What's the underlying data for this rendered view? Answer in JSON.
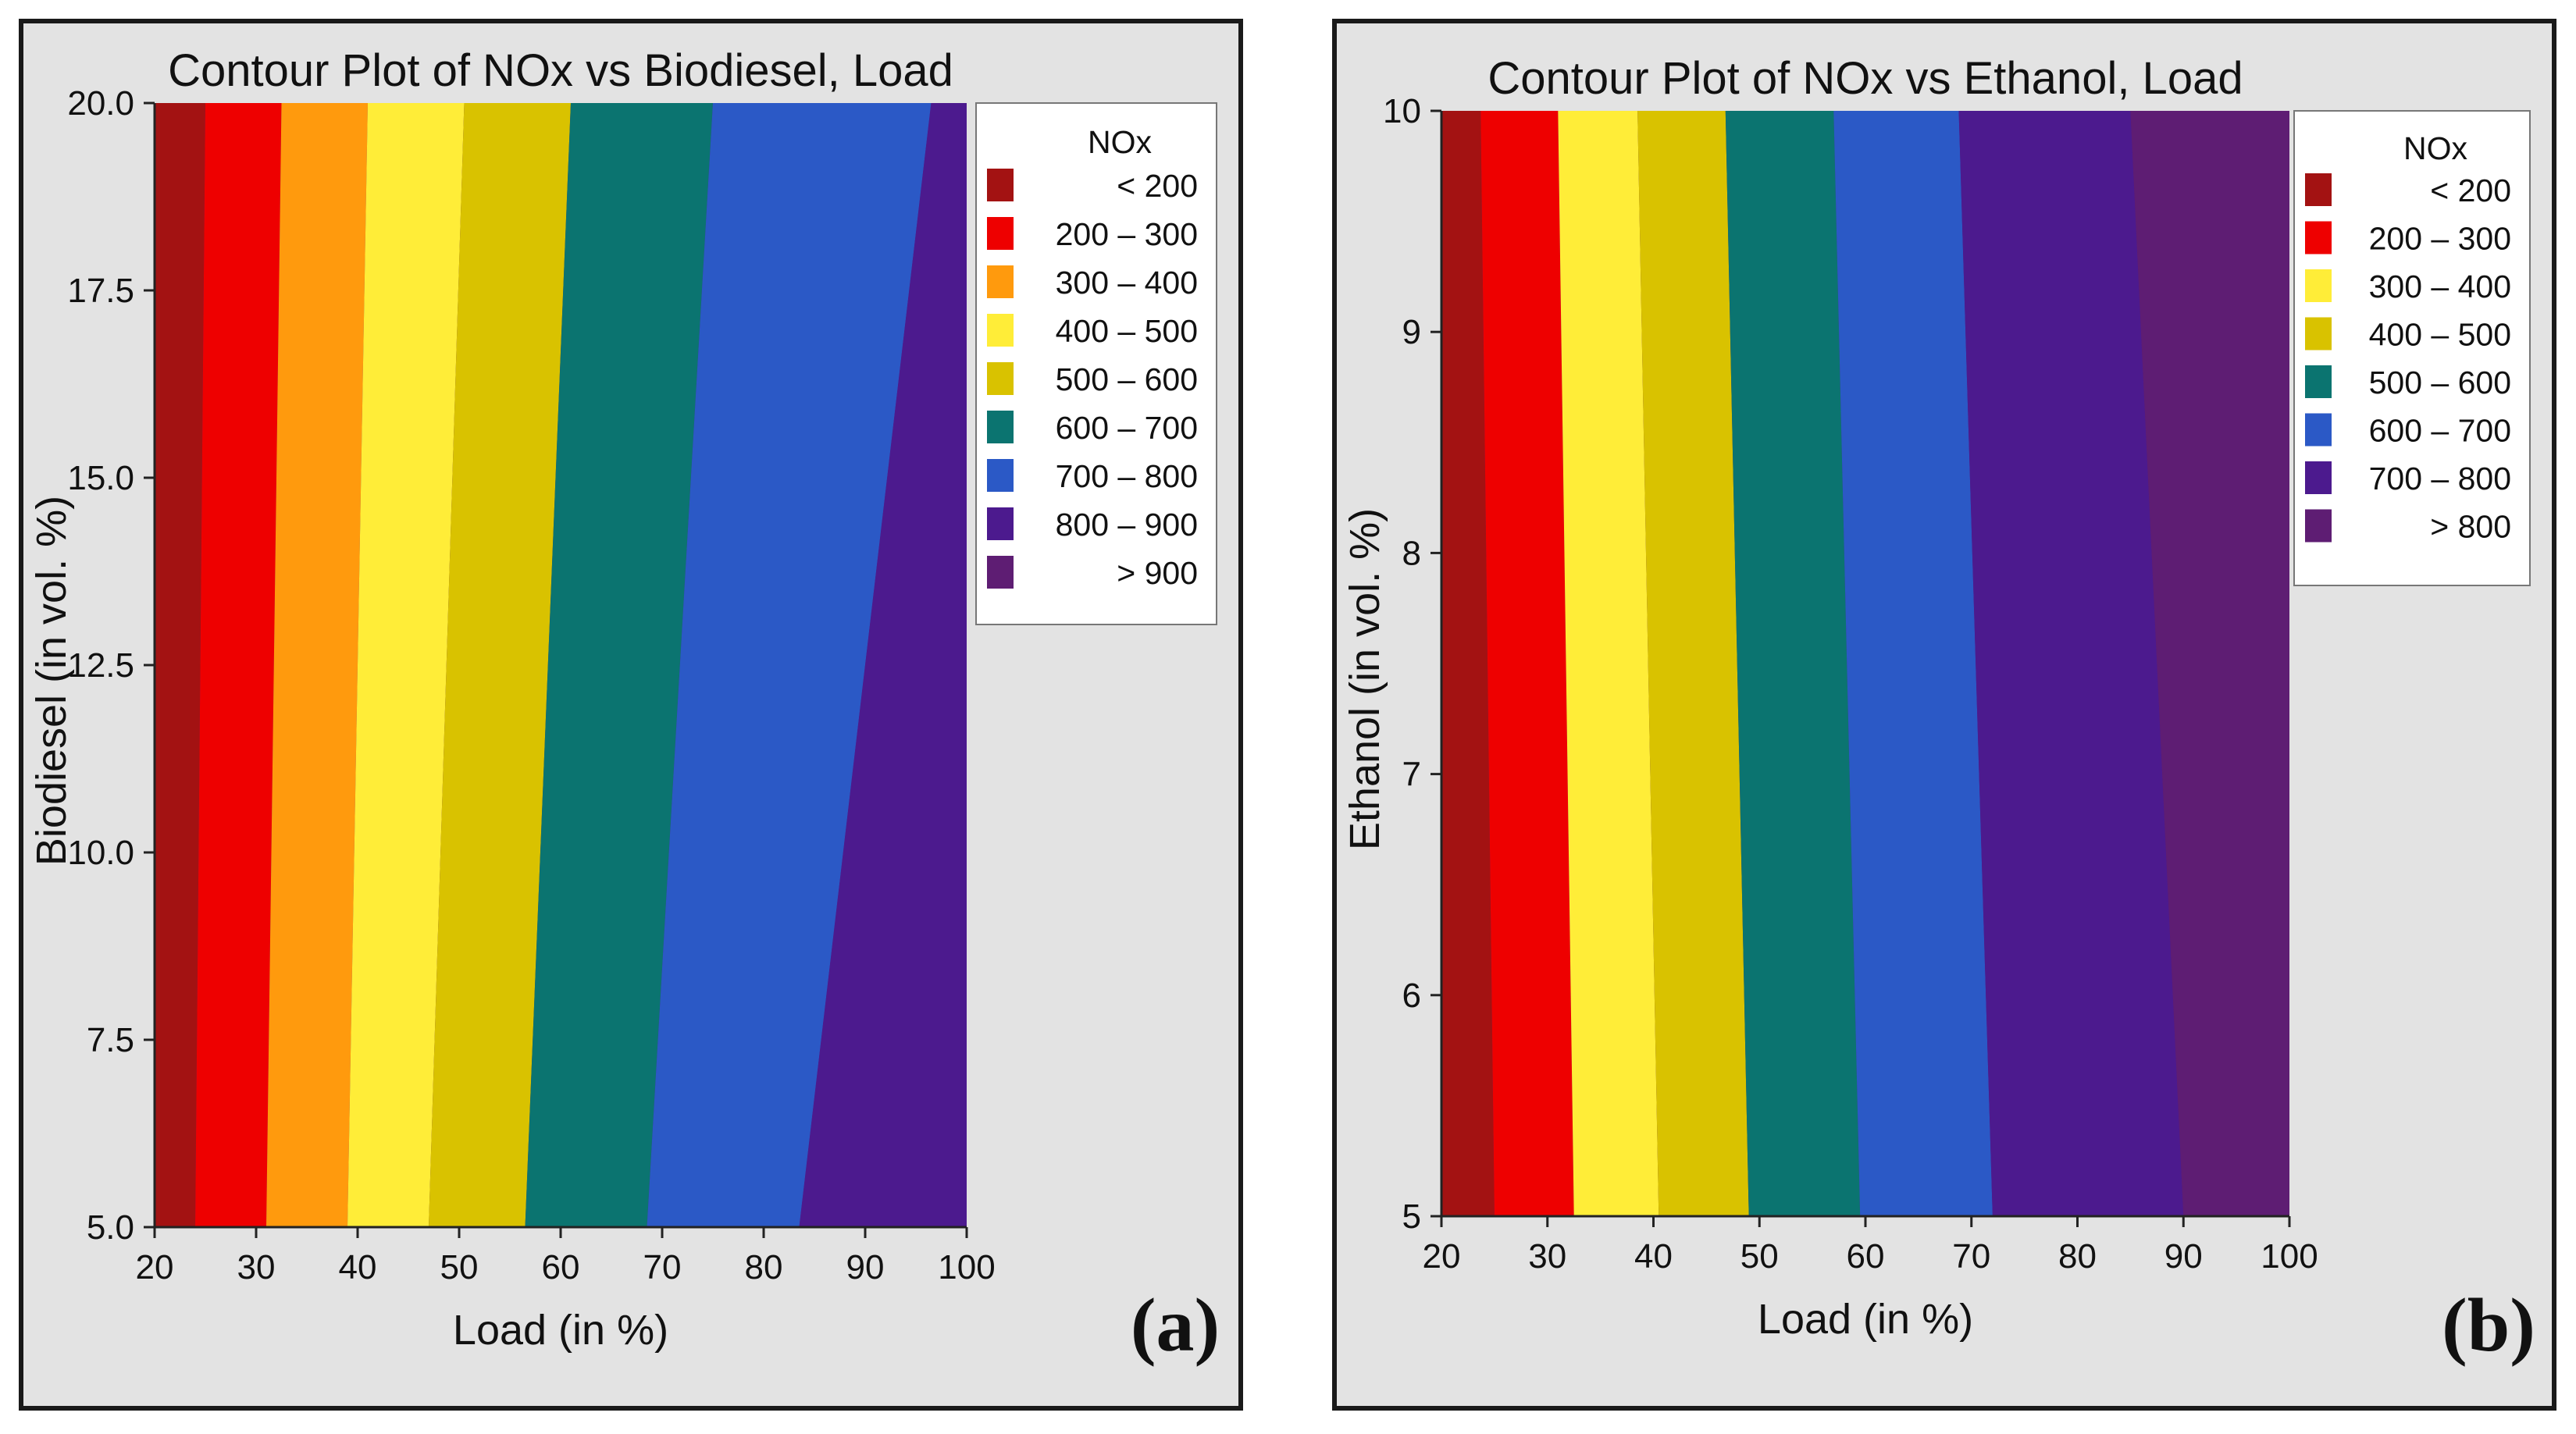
{
  "chart_data": [
    {
      "type": "contour",
      "title": "Contour Plot of NOx vs Biodiesel, Load",
      "xlabel": "Load (in %)",
      "ylabel": "Biodiesel (in vol. %)",
      "xlim": [
        20,
        100
      ],
      "ylim": [
        5,
        20
      ],
      "x_ticks": [
        "20",
        "30",
        "40",
        "50",
        "60",
        "70",
        "80",
        "90",
        "100"
      ],
      "y_ticks": [
        "5.0",
        "7.5",
        "10.0",
        "12.5",
        "15.0",
        "17.5",
        "20.0"
      ],
      "legend_title": "NOx",
      "legend": [
        {
          "label": "< 200",
          "color": "#a31212"
        },
        {
          "label": "200 – 300",
          "color": "#ee0000"
        },
        {
          "label": "300 – 400",
          "color": "#ff9a0d"
        },
        {
          "label": "400 – 500",
          "color": "#ffed38"
        },
        {
          "label": "500 – 600",
          "color": "#d9c200"
        },
        {
          "label": "600 – 700",
          "color": "#0b7470"
        },
        {
          "label": "700 – 800",
          "color": "#2b59c6"
        },
        {
          "label": "800 – 900",
          "color": "#4c1a8e"
        },
        {
          "label": "> 900",
          "color": "#5e1d73"
        }
      ],
      "bands": [
        {
          "label": "< 200",
          "bottom": [
            20,
            24
          ],
          "top": [
            20,
            25
          ]
        },
        {
          "label": "200 – 300",
          "bottom": [
            24,
            31
          ],
          "top": [
            25,
            32.5
          ]
        },
        {
          "label": "300 – 400",
          "bottom": [
            31,
            39
          ],
          "top": [
            32.5,
            41
          ]
        },
        {
          "label": "400 – 500",
          "bottom": [
            39,
            47
          ],
          "top": [
            41,
            50.5
          ]
        },
        {
          "label": "500 – 600",
          "bottom": [
            47,
            56.5
          ],
          "top": [
            50.5,
            61
          ]
        },
        {
          "label": "600 – 700",
          "bottom": [
            56.5,
            68.5
          ],
          "top": [
            61,
            75
          ]
        },
        {
          "label": "700 – 800",
          "bottom": [
            68.5,
            83.5
          ],
          "top": [
            75,
            96.5
          ]
        },
        {
          "label": "800 – 900",
          "bottom": [
            83.5,
            100
          ],
          "top": [
            96.5,
            100
          ]
        }
      ],
      "panel_label": "(a)"
    },
    {
      "type": "contour",
      "title": "Contour Plot of NOx vs Ethanol, Load",
      "xlabel": "Load (in %)",
      "ylabel": "Ethanol (in vol. %)",
      "xlim": [
        20,
        100
      ],
      "ylim": [
        5,
        10
      ],
      "x_ticks": [
        "20",
        "30",
        "40",
        "50",
        "60",
        "70",
        "80",
        "90",
        "100"
      ],
      "y_ticks": [
        "5",
        "6",
        "7",
        "8",
        "9",
        "10"
      ],
      "legend_title": "NOx",
      "legend": [
        {
          "label": "< 200",
          "color": "#a31212"
        },
        {
          "label": "200 – 300",
          "color": "#ee0000"
        },
        {
          "label": "300 – 400",
          "color": "#ffed38"
        },
        {
          "label": "400 – 500",
          "color": "#d9c200"
        },
        {
          "label": "500 – 600",
          "color": "#0b7470"
        },
        {
          "label": "600 – 700",
          "color": "#2b59c6"
        },
        {
          "label": "700 – 800",
          "color": "#4c1a8e"
        },
        {
          "label": "> 800",
          "color": "#5e1d73"
        }
      ],
      "bands": [
        {
          "label": "< 200",
          "bottom": [
            20,
            25
          ],
          "top": [
            20,
            23.7
          ]
        },
        {
          "label": "200 – 300",
          "bottom": [
            25,
            32.5
          ],
          "top": [
            23.7,
            31
          ]
        },
        {
          "label": "300 – 400",
          "bottom": [
            32.5,
            40.5
          ],
          "top": [
            31,
            38.5
          ]
        },
        {
          "label": "400 – 500",
          "bottom": [
            40.5,
            49
          ],
          "top": [
            38.5,
            46.8
          ]
        },
        {
          "label": "500 – 600",
          "bottom": [
            49,
            59.5
          ],
          "top": [
            46.8,
            57
          ]
        },
        {
          "label": "600 – 700",
          "bottom": [
            59.5,
            72
          ],
          "top": [
            57,
            68.8
          ]
        },
        {
          "label": "700 – 800",
          "bottom": [
            72,
            90
          ],
          "top": [
            68.8,
            85
          ]
        },
        {
          "label": "> 800",
          "bottom": [
            90,
            100
          ],
          "top": [
            85,
            100
          ]
        }
      ],
      "panel_label": "(b)"
    }
  ]
}
